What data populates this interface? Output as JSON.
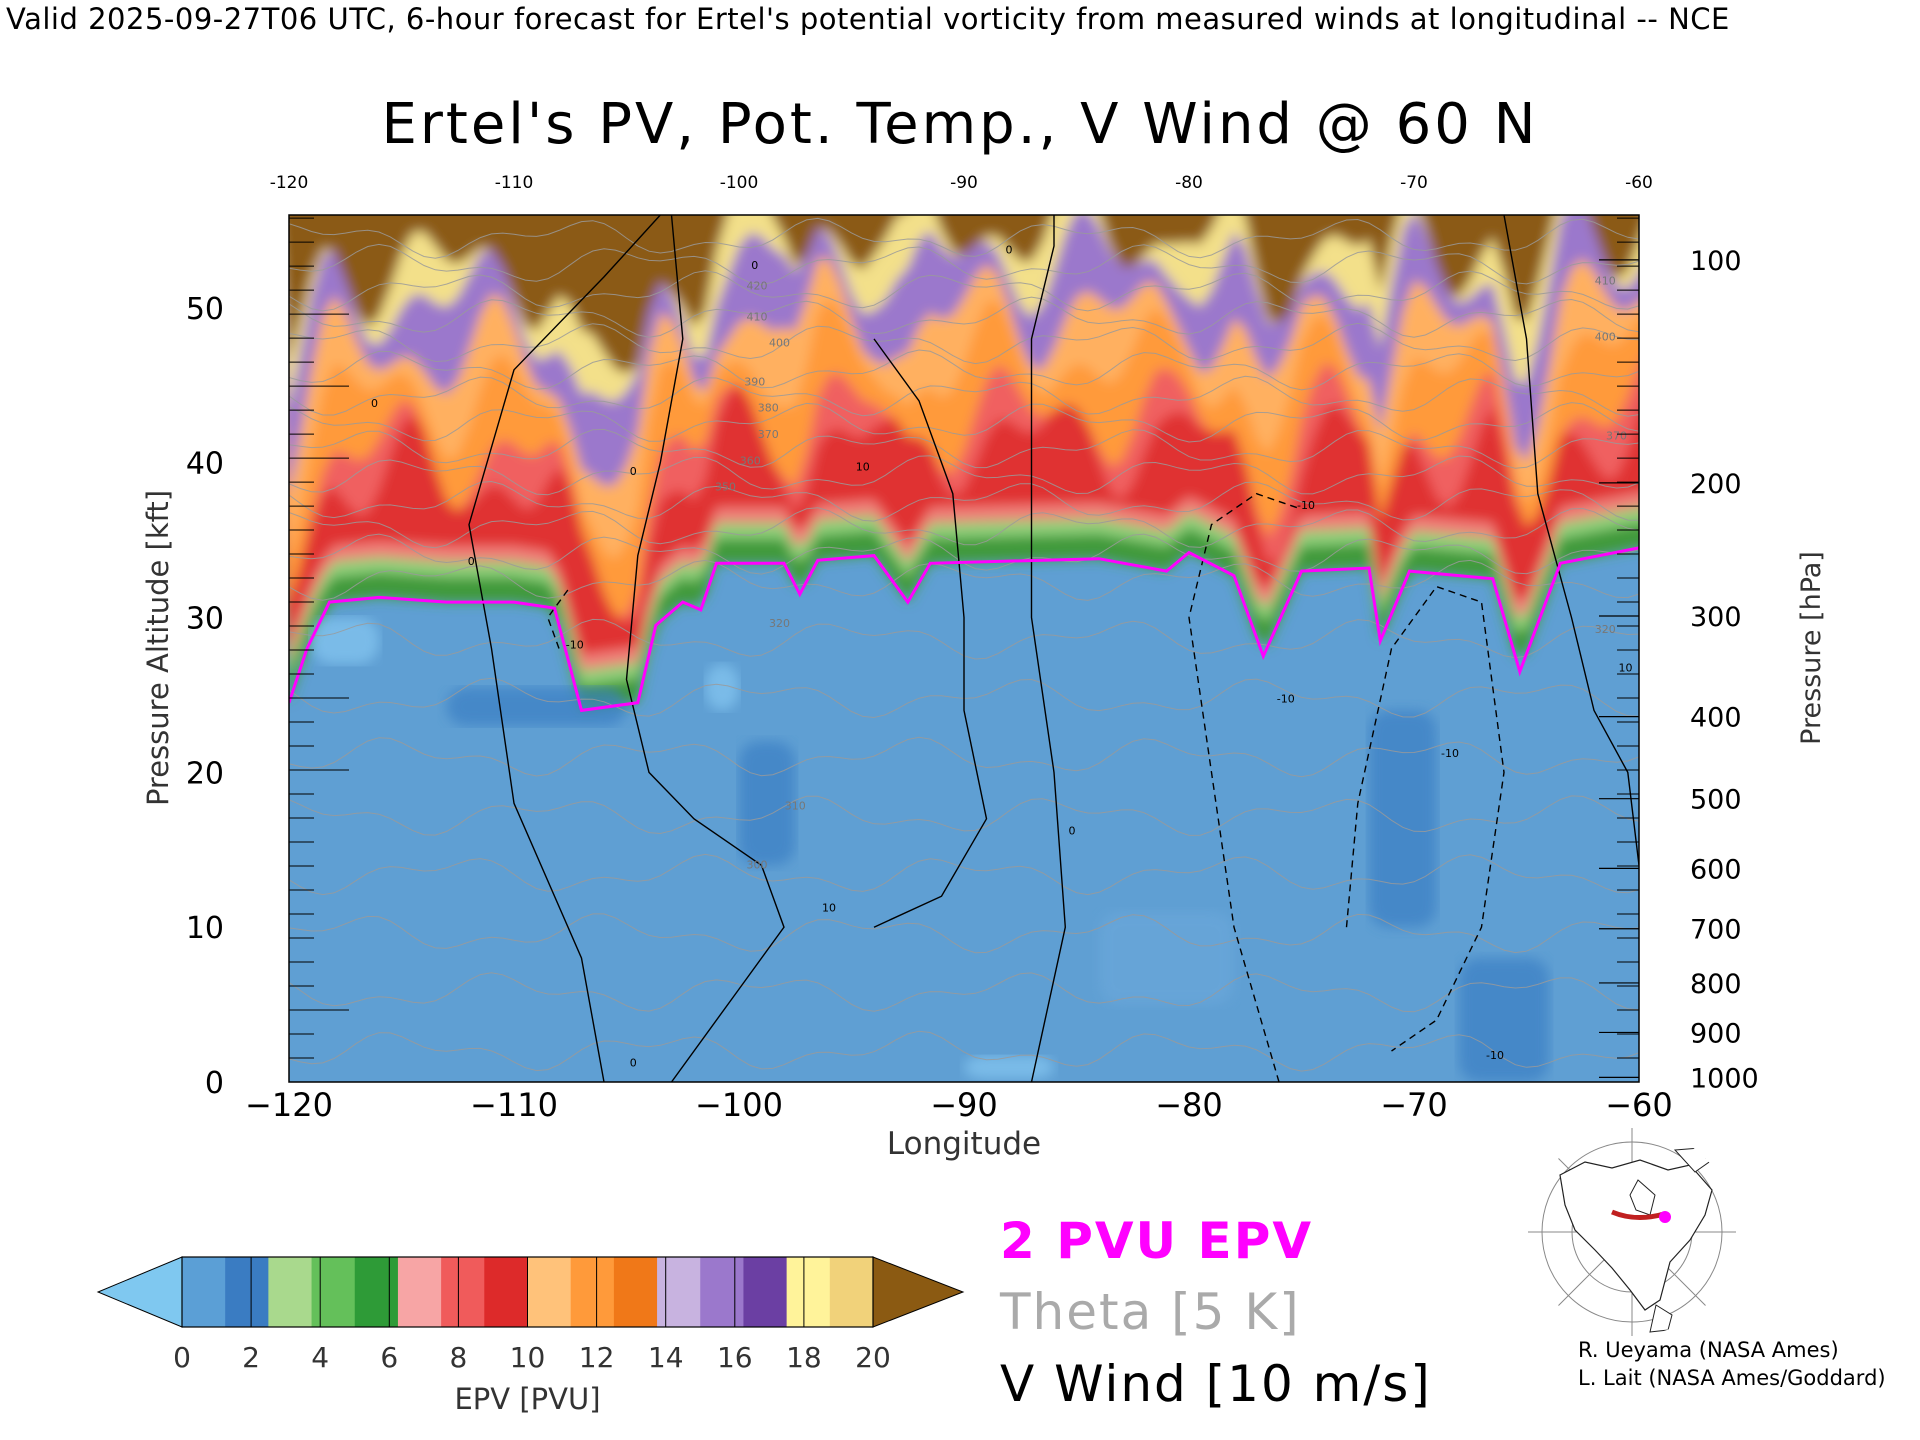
{
  "header": {
    "text": "Valid 2025-09-27T06 UTC, 6-hour forecast for Ertel's potential vorticity from measured winds at longitudinal -- NCE"
  },
  "chart_data": {
    "type": "heatmap",
    "title": "Ertel's PV, Pot. Temp., V Wind @ 60 N",
    "xlabel": "Longitude",
    "ylabel": "Pressure Altitude [kft]",
    "y2label": "Pressure [hPa]",
    "xlim": [
      -120,
      -60
    ],
    "ylim": [
      0,
      56
    ],
    "x_ticks": [
      "-120",
      "-110",
      "-100",
      "-90",
      "-80",
      "-70",
      "-60"
    ],
    "x_top_ticks": [
      "-120",
      "-110",
      "-100",
      "-90",
      "-80",
      "-70",
      "-60"
    ],
    "y_ticks": [
      "0",
      "10",
      "20",
      "30",
      "40",
      "50"
    ],
    "pressure_ticks": [
      {
        "label": "100",
        "kft": 53.1
      },
      {
        "label": "200",
        "kft": 38.7
      },
      {
        "label": "300",
        "kft": 30.1
      },
      {
        "label": "400",
        "kft": 23.6
      },
      {
        "label": "500",
        "kft": 18.3
      },
      {
        "label": "600",
        "kft": 13.8
      },
      {
        "label": "700",
        "kft": 9.9
      },
      {
        "label": "800",
        "kft": 6.4
      },
      {
        "label": "900",
        "kft": 3.2
      },
      {
        "label": "1000",
        "kft": 0.3
      }
    ],
    "tropopause_2pvu_kft": [
      {
        "lon": -120,
        "kft": 24.5
      },
      {
        "lon": -119.2,
        "kft": 28.0
      },
      {
        "lon": -118.2,
        "kft": 31.0
      },
      {
        "lon": -116,
        "kft": 31.3
      },
      {
        "lon": -113,
        "kft": 31.0
      },
      {
        "lon": -110,
        "kft": 31.0
      },
      {
        "lon": -108.2,
        "kft": 30.6
      },
      {
        "lon": -107,
        "kft": 24.0
      },
      {
        "lon": -104.5,
        "kft": 24.5
      },
      {
        "lon": -103.7,
        "kft": 29.5
      },
      {
        "lon": -102.5,
        "kft": 31.0
      },
      {
        "lon": -101.7,
        "kft": 30.5
      },
      {
        "lon": -101,
        "kft": 33.5
      },
      {
        "lon": -98,
        "kft": 33.5
      },
      {
        "lon": -97.3,
        "kft": 31.5
      },
      {
        "lon": -96.5,
        "kft": 33.7
      },
      {
        "lon": -94,
        "kft": 34.0
      },
      {
        "lon": -92.5,
        "kft": 31.0
      },
      {
        "lon": -91.5,
        "kft": 33.5
      },
      {
        "lon": -84,
        "kft": 33.8
      },
      {
        "lon": -81,
        "kft": 33.0
      },
      {
        "lon": -80,
        "kft": 34.2
      },
      {
        "lon": -78,
        "kft": 32.7
      },
      {
        "lon": -76.7,
        "kft": 27.5
      },
      {
        "lon": -75,
        "kft": 33.0
      },
      {
        "lon": -72,
        "kft": 33.2
      },
      {
        "lon": -71.5,
        "kft": 28.5
      },
      {
        "lon": -70.2,
        "kft": 33.0
      },
      {
        "lon": -66.5,
        "kft": 32.5
      },
      {
        "lon": -65.3,
        "kft": 26.5
      },
      {
        "lon": -63.5,
        "kft": 33.5
      },
      {
        "lon": -60,
        "kft": 34.5
      }
    ],
    "colorbar": {
      "label": "EPV [PVU]",
      "ticks": [
        "0",
        "2",
        "4",
        "6",
        "8",
        "10",
        "12",
        "14",
        "16",
        "18",
        "20"
      ],
      "range": [
        0,
        20
      ],
      "colors": [
        "#7fc8f0",
        "#5b9fd6",
        "#3a7cc2",
        "#a9d98d",
        "#64c05a",
        "#2e9b37",
        "#f7a5a5",
        "#f05b5b",
        "#dd2a2a",
        "#ffc27a",
        "#ff9a3a",
        "#f07818",
        "#c8b3e0",
        "#9b78cc",
        "#6b3fa3",
        "#fff39a",
        "#f1d27a",
        "#8b5a12"
      ]
    },
    "contour_labels": [
      {
        "kind": "theta",
        "text": "420",
        "lon": -99.2,
        "kft": 51.2
      },
      {
        "kind": "theta",
        "text": "410",
        "lon": -99.2,
        "kft": 49.2
      },
      {
        "kind": "theta",
        "text": "400",
        "lon": -98.2,
        "kft": 47.5
      },
      {
        "kind": "theta",
        "text": "390",
        "lon": -99.3,
        "kft": 45.0
      },
      {
        "kind": "theta",
        "text": "380",
        "lon": -98.7,
        "kft": 43.3
      },
      {
        "kind": "theta",
        "text": "370",
        "lon": -98.7,
        "kft": 41.6
      },
      {
        "kind": "theta",
        "text": "360",
        "lon": -99.5,
        "kft": 39.9
      },
      {
        "kind": "theta",
        "text": "350",
        "lon": -100.6,
        "kft": 38.2
      },
      {
        "kind": "theta",
        "text": "320",
        "lon": -98.2,
        "kft": 29.4
      },
      {
        "kind": "theta",
        "text": "310",
        "lon": -97.5,
        "kft": 17.6
      },
      {
        "kind": "theta",
        "text": "300",
        "lon": -99.2,
        "kft": 13.8
      },
      {
        "kind": "theta",
        "text": "410",
        "lon": -61.5,
        "kft": 51.5
      },
      {
        "kind": "theta",
        "text": "400",
        "lon": -61.5,
        "kft": 47.9
      },
      {
        "kind": "theta",
        "text": "370",
        "lon": -61.0,
        "kft": 41.5
      },
      {
        "kind": "theta",
        "text": "320",
        "lon": -61.5,
        "kft": 29.0
      },
      {
        "kind": "wind",
        "text": "0",
        "lon": -116.2,
        "kft": 43.6
      },
      {
        "kind": "wind",
        "text": "0",
        "lon": -111.9,
        "kft": 33.4
      },
      {
        "kind": "wind",
        "text": "0",
        "lon": -104.7,
        "kft": 39.2
      },
      {
        "kind": "wind",
        "text": "0",
        "lon": -104.7,
        "kft": 1.0
      },
      {
        "kind": "wind",
        "text": "0",
        "lon": -99.3,
        "kft": 52.5
      },
      {
        "kind": "wind",
        "text": "0",
        "lon": -88.0,
        "kft": 53.5
      },
      {
        "kind": "wind",
        "text": "0",
        "lon": -85.2,
        "kft": 16.0
      },
      {
        "kind": "wind",
        "text": "0",
        "lon": -59.9,
        "kft": 13.5
      },
      {
        "kind": "wind",
        "text": "10",
        "lon": -94.5,
        "kft": 39.5
      },
      {
        "kind": "wind",
        "text": "-10",
        "lon": -107.3,
        "kft": 28.0
      },
      {
        "kind": "wind",
        "text": "-10",
        "lon": -74.8,
        "kft": 37.0
      },
      {
        "kind": "wind",
        "text": "-10",
        "lon": -75.7,
        "kft": 24.5
      },
      {
        "kind": "wind",
        "text": "-10",
        "lon": -68.4,
        "kft": 21.0
      },
      {
        "kind": "wind",
        "text": "10",
        "lon": -96.0,
        "kft": 11.0
      },
      {
        "kind": "wind",
        "text": "10",
        "lon": -60.6,
        "kft": 26.5
      },
      {
        "kind": "wind",
        "text": "-10",
        "lon": -66.4,
        "kft": 1.5
      }
    ]
  },
  "legend": {
    "epv_line": "2 PVU EPV",
    "theta_line": "Theta [5 K]",
    "vwind_line": "V Wind [10 m/s]",
    "colors": {
      "epv": "#ff00ff",
      "theta": "#aaaaaa",
      "vwind": "#000000"
    }
  },
  "locator_map": {
    "icon": "polar-map-icon",
    "colors": {
      "section": "#c02020",
      "marker": "#ff00ff"
    }
  },
  "credits": {
    "line1": "R. Ueyama (NASA Ames)",
    "line2": "L. Lait (NASA Ames/Goddard)"
  }
}
